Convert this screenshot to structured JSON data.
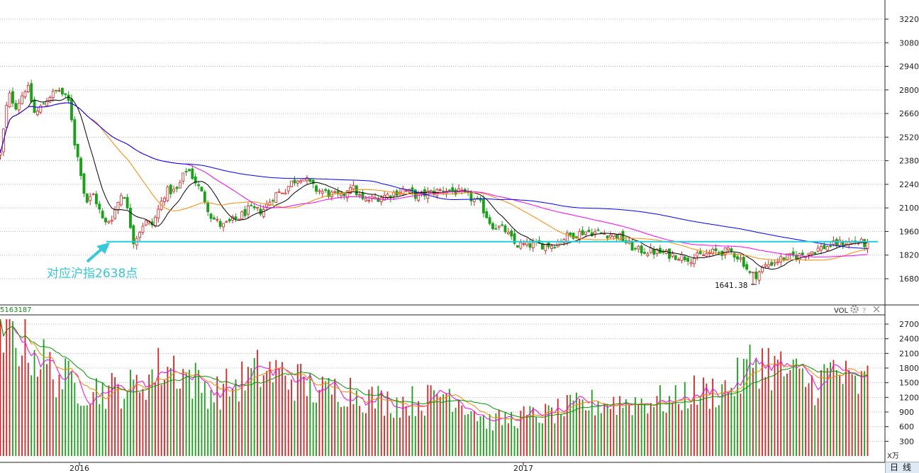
{
  "chart_data": [
    {
      "type": "candlestick",
      "title": "",
      "y_ticks": [
        3220,
        3080,
        2940,
        2800,
        2660,
        2520,
        2380,
        2240,
        2100,
        1960,
        1820,
        1680
      ],
      "ylim": [
        1590,
        3290
      ],
      "x_labels": [
        "2016",
        "2017"
      ],
      "grid": true,
      "n_bars": 281,
      "anchors_close": [
        [
          0,
          2420
        ],
        [
          6,
          2780
        ],
        [
          12,
          2700
        ],
        [
          20,
          2830
        ],
        [
          26,
          2650
        ],
        [
          36,
          2760
        ],
        [
          44,
          2800
        ],
        [
          52,
          2720
        ],
        [
          56,
          2470
        ],
        [
          60,
          2330
        ],
        [
          64,
          2130
        ],
        [
          70,
          2180
        ],
        [
          78,
          2000
        ],
        [
          84,
          2050
        ],
        [
          92,
          2210
        ],
        [
          100,
          1900
        ],
        [
          108,
          2020
        ],
        [
          114,
          2000
        ],
        [
          124,
          2200
        ],
        [
          132,
          2200
        ],
        [
          140,
          2340
        ],
        [
          146,
          2260
        ],
        [
          152,
          2170
        ],
        [
          158,
          2050
        ],
        [
          166,
          1990
        ],
        [
          178,
          2040
        ],
        [
          186,
          2090
        ],
        [
          196,
          2080
        ],
        [
          206,
          2180
        ],
        [
          214,
          2210
        ],
        [
          218,
          2250
        ],
        [
          226,
          2290
        ],
        [
          236,
          2210
        ],
        [
          244,
          2190
        ],
        [
          256,
          2160
        ],
        [
          262,
          2240
        ],
        [
          272,
          2140
        ],
        [
          282,
          2160
        ],
        [
          292,
          2180
        ],
        [
          302,
          2210
        ],
        [
          312,
          2170
        ],
        [
          322,
          2190
        ],
        [
          334,
          2210
        ],
        [
          340,
          2200
        ],
        [
          350,
          2170
        ],
        [
          360,
          2120
        ],
        [
          368,
          2000
        ],
        [
          378,
          1970
        ],
        [
          386,
          1880
        ],
        [
          394,
          1880
        ],
        [
          404,
          1880
        ],
        [
          414,
          1880
        ],
        [
          424,
          1930
        ],
        [
          438,
          1960
        ],
        [
          452,
          1950
        ],
        [
          464,
          1930
        ],
        [
          476,
          1850
        ],
        [
          490,
          1840
        ],
        [
          504,
          1820
        ],
        [
          518,
          1800
        ],
        [
          536,
          1840
        ],
        [
          548,
          1840
        ],
        [
          556,
          1790
        ],
        [
          562,
          1705
        ],
        [
          566,
          1700
        ],
        [
          574,
          1760
        ],
        [
          586,
          1800
        ],
        [
          600,
          1820
        ],
        [
          614,
          1860
        ],
        [
          628,
          1890
        ],
        [
          642,
          1900
        ],
        [
          650,
          1880
        ]
      ],
      "highlight_level": 1900,
      "annotation": "对应沪指2638点",
      "low_label": "1641.38",
      "ma_colors": [
        "#000000",
        "#ff8800",
        "#ff00ff",
        "#0000ff"
      ],
      "colors": {
        "up": "#e02020",
        "down": "#16a316",
        "hline": "#22cfdb"
      }
    },
    {
      "type": "bar",
      "title": "VOL",
      "legend_value": "5163187",
      "y_ticks": [
        2700,
        2400,
        2100,
        1800,
        1500,
        1200,
        900,
        600,
        300
      ],
      "ylim": [
        0,
        2820
      ],
      "unit": "X万",
      "vol_anchors": [
        [
          0,
          2400
        ],
        [
          10,
          2500
        ],
        [
          20,
          2300
        ],
        [
          40,
          1700
        ],
        [
          60,
          1400
        ],
        [
          80,
          1350
        ],
        [
          100,
          1400
        ],
        [
          120,
          1800
        ],
        [
          130,
          1850
        ],
        [
          145,
          1550
        ],
        [
          160,
          1300
        ],
        [
          175,
          1450
        ],
        [
          195,
          1750
        ],
        [
          215,
          1650
        ],
        [
          240,
          1300
        ],
        [
          260,
          1400
        ],
        [
          275,
          1200
        ],
        [
          295,
          1100
        ],
        [
          320,
          1150
        ],
        [
          335,
          1350
        ],
        [
          350,
          1050
        ],
        [
          365,
          700
        ],
        [
          380,
          760
        ],
        [
          395,
          820
        ],
        [
          410,
          850
        ],
        [
          430,
          1000
        ],
        [
          450,
          1100
        ],
        [
          470,
          1100
        ],
        [
          490,
          1150
        ],
        [
          505,
          1100
        ],
        [
          515,
          1300
        ],
        [
          530,
          1300
        ],
        [
          545,
          1400
        ],
        [
          555,
          1600
        ],
        [
          565,
          2000
        ],
        [
          575,
          1900
        ],
        [
          590,
          1700
        ],
        [
          610,
          1450
        ],
        [
          625,
          1800
        ],
        [
          640,
          1400
        ],
        [
          650,
          1550
        ]
      ],
      "ma_colors": [
        "#ff00ff",
        "#ff8800",
        "#009900"
      ]
    }
  ],
  "ui": {
    "vol_label": "VOL",
    "unit_label": "X万",
    "timeframe_label": "日线",
    "x_labels": [
      "2016",
      "2017"
    ]
  }
}
